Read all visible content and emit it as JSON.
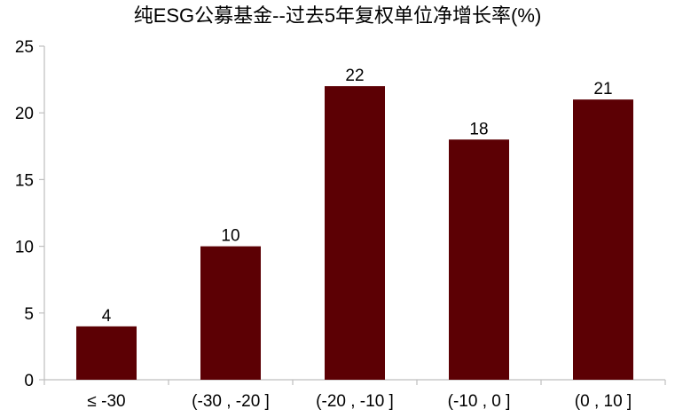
{
  "chart_data": {
    "type": "bar",
    "title": "纯ESG公募基金--过去5年复权单位净增长率(%)",
    "categories": [
      "≤ -30",
      "(-30 , -20 ]",
      "(-20 , -10 ]",
      "(-10 , 0 ]",
      "(0 , 10 ]"
    ],
    "values": [
      4,
      10,
      22,
      18,
      21
    ],
    "data_labels": [
      "4",
      "10",
      "22",
      "18",
      "21"
    ],
    "xlabel": "",
    "ylabel": "",
    "ylim": [
      0,
      25
    ],
    "yticks": [
      0,
      5,
      10,
      15,
      20,
      25
    ],
    "ytick_labels": [
      "0",
      "5",
      "10",
      "15",
      "20",
      "25"
    ],
    "grid": false,
    "legend": "none",
    "bar_color": "#5c0004"
  }
}
